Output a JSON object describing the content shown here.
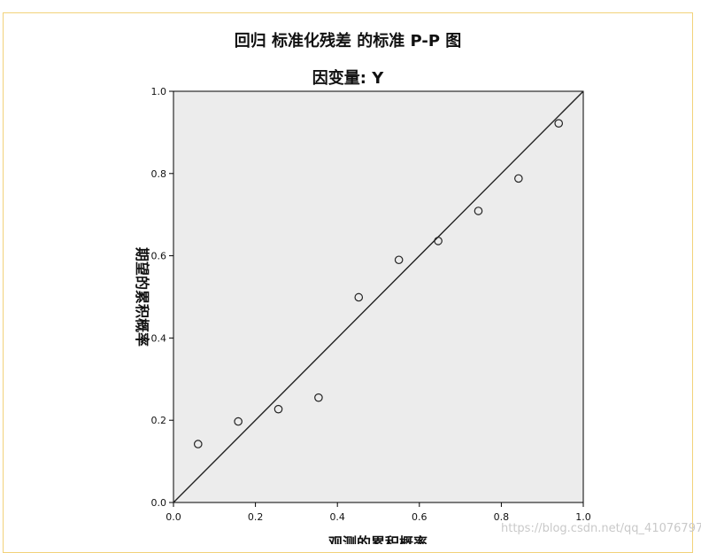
{
  "chart_data": {
    "type": "scatter",
    "title": "回归 标准化残差 的标准 P-P 图",
    "subtitle": "因变量: Y",
    "xlabel": "观测的累积概率",
    "ylabel": "期望的累积概率",
    "xlim": [
      0.0,
      1.0
    ],
    "ylim": [
      0.0,
      1.0
    ],
    "xticks": [
      "0.0",
      "0.2",
      "0.4",
      "0.6",
      "0.8",
      "1.0"
    ],
    "yticks": [
      "0.0",
      "0.2",
      "0.4",
      "0.6",
      "0.8",
      "1.0"
    ],
    "grid": false,
    "reference_line": [
      [
        0.0,
        0.0
      ],
      [
        1.0,
        1.0
      ]
    ],
    "points": [
      {
        "x": 0.06,
        "y": 0.142
      },
      {
        "x": 0.158,
        "y": 0.197
      },
      {
        "x": 0.256,
        "y": 0.227
      },
      {
        "x": 0.354,
        "y": 0.255
      },
      {
        "x": 0.452,
        "y": 0.499
      },
      {
        "x": 0.55,
        "y": 0.59
      },
      {
        "x": 0.646,
        "y": 0.636
      },
      {
        "x": 0.744,
        "y": 0.709
      },
      {
        "x": 0.842,
        "y": 0.788
      },
      {
        "x": 0.94,
        "y": 0.922
      }
    ],
    "plot_background": "#ececec",
    "line_color": "#222222",
    "marker_color": "#222222"
  },
  "watermark": "https://blog.csdn.net/qq_41076797"
}
